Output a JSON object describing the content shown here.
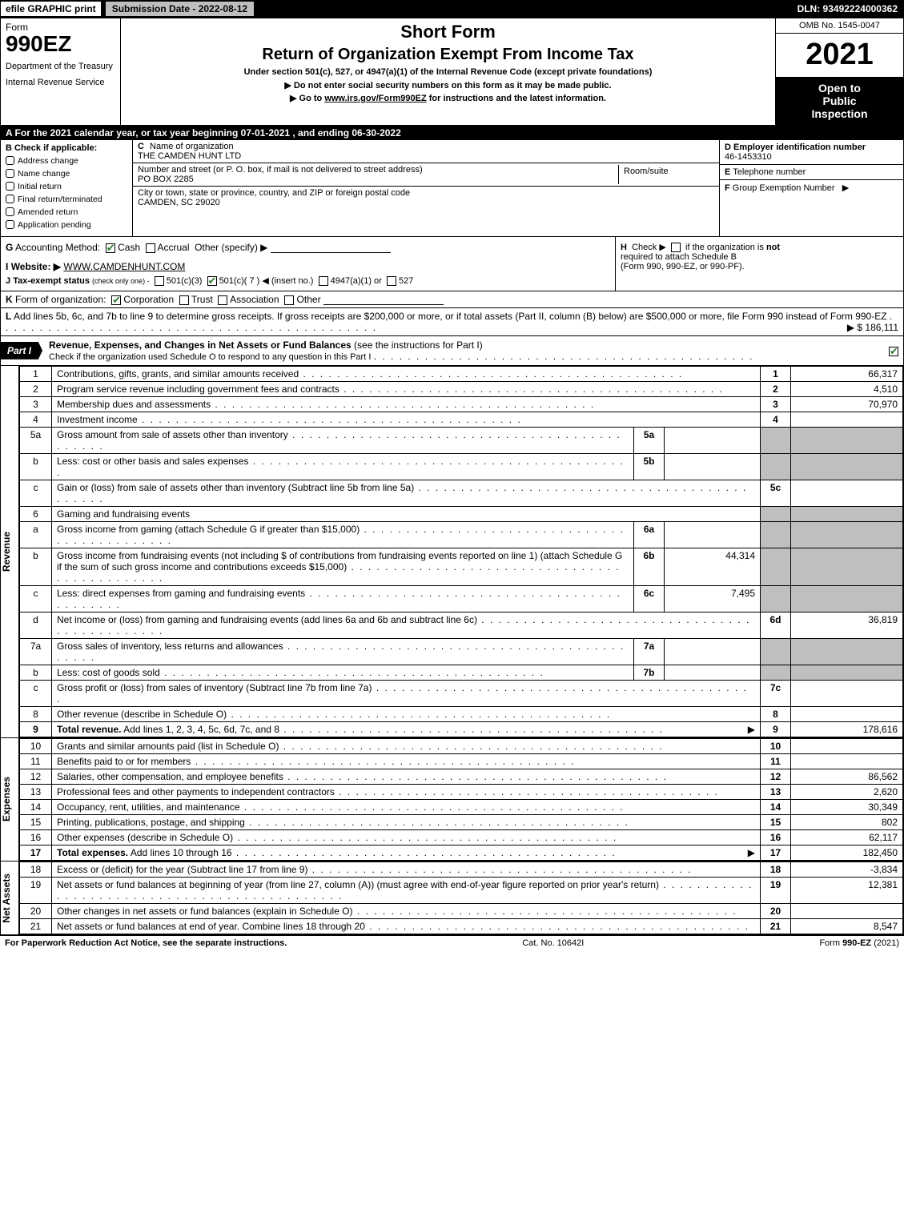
{
  "top": {
    "efile": "efile GRAPHIC print",
    "submission": "Submission Date - 2022-08-12",
    "dln": "DLN: 93492224000362"
  },
  "header": {
    "form_label": "Form",
    "form_num": "990EZ",
    "dept1": "Department of the Treasury",
    "dept2": "Internal Revenue Service",
    "short_form": "Short Form",
    "return_title": "Return of Organization Exempt From Income Tax",
    "under_section": "Under section 501(c), 527, or 4947(a)(1) of the Internal Revenue Code (except private foundations)",
    "instr1": "▶ Do not enter social security numbers on this form as it may be made public.",
    "instr2_pre": "▶ Go to ",
    "instr2_link": "www.irs.gov/Form990EZ",
    "instr2_post": " for instructions and the latest information.",
    "omb": "OMB No. 1545-0047",
    "year": "2021",
    "open1": "Open to",
    "open2": "Public",
    "open3": "Inspection"
  },
  "section_a": "A  For the 2021 calendar year, or tax year beginning 07-01-2021 , and ending 06-30-2022",
  "section_b": {
    "label": "B",
    "check_if": "Check if applicable:",
    "items": [
      "Address change",
      "Name change",
      "Initial return",
      "Final return/terminated",
      "Amended return",
      "Application pending"
    ]
  },
  "section_c": {
    "name_lab": "C",
    "name_desc": "Name of organization",
    "name_val": "THE CAMDEN HUNT LTD",
    "street_desc": "Number and street (or P. O. box, if mail is not delivered to street address)",
    "street_val": "PO BOX 2285",
    "room_lab": "Room/suite",
    "city_desc": "City or town, state or province, country, and ZIP or foreign postal code",
    "city_val": "CAMDEN, SC  29020"
  },
  "section_d": {
    "d_lab": "D",
    "ein_lab": "Employer identification number",
    "ein_val": "46-1453310",
    "e_lab": "E",
    "tel_lab": "Telephone number",
    "f_lab": "F",
    "group_lab": "Group Exemption Number",
    "group_arrow": "▶"
  },
  "section_g": {
    "label": "G",
    "text": "Accounting Method:",
    "cash": "Cash",
    "accrual": "Accrual",
    "other": "Other (specify) ▶"
  },
  "section_h": {
    "label": "H",
    "text1": "Check ▶",
    "text2": "if the organization is",
    "not": "not",
    "text3": "required to attach Schedule B",
    "text4": "(Form 990, 990-EZ, or 990-PF)."
  },
  "section_i": {
    "label": "I",
    "text": "Website: ▶",
    "val": "WWW.CAMDENHUNT.COM"
  },
  "section_j": {
    "label": "J",
    "text": "Tax-exempt status",
    "sub": "(check only one) -",
    "o1": "501(c)(3)",
    "o2": "501(c)( 7 ) ◀ (insert no.)",
    "o3": "4947(a)(1) or",
    "o4": "527"
  },
  "section_k": {
    "label": "K",
    "text": "Form of organization:",
    "o1": "Corporation",
    "o2": "Trust",
    "o3": "Association",
    "o4": "Other"
  },
  "section_l": {
    "label": "L",
    "text1": "Add lines 5b, 6c, and 7b to line 9 to determine gross receipts. If gross receipts are $200,000 or more, or if total assets (Part II, column (B) below) are $500,000 or more, file Form 990 instead of Form 990-EZ",
    "val": "▶ $ 186,111"
  },
  "part1": {
    "tag": "Part I",
    "title": "Revenue, Expenses, and Changes in Net Assets or Fund Balances",
    "sub": "(see the instructions for Part I)",
    "check_line": "Check if the organization used Schedule O to respond to any question in this Part I"
  },
  "side_labels": {
    "revenue": "Revenue",
    "expenses": "Expenses",
    "netassets": "Net Assets"
  },
  "revenue": [
    {
      "n": "1",
      "d": "Contributions, gifts, grants, and similar amounts received",
      "r": "1",
      "v": "66,317"
    },
    {
      "n": "2",
      "d": "Program service revenue including government fees and contracts",
      "r": "2",
      "v": "4,510"
    },
    {
      "n": "3",
      "d": "Membership dues and assessments",
      "r": "3",
      "v": "70,970"
    },
    {
      "n": "4",
      "d": "Investment income",
      "r": "4",
      "v": ""
    },
    {
      "n": "5a",
      "d": "Gross amount from sale of assets other than inventory",
      "mid_n": "5a",
      "mid_v": "",
      "grey": true
    },
    {
      "n": "b",
      "d": "Less: cost or other basis and sales expenses",
      "mid_n": "5b",
      "mid_v": "",
      "grey": true
    },
    {
      "n": "c",
      "d": "Gain or (loss) from sale of assets other than inventory (Subtract line 5b from line 5a)",
      "r": "5c",
      "v": ""
    },
    {
      "n": "6",
      "d": "Gaming and fundraising events",
      "grey_full": true
    },
    {
      "n": "a",
      "d": "Gross income from gaming (attach Schedule G if greater than $15,000)",
      "mid_n": "6a",
      "mid_v": "",
      "grey": true
    },
    {
      "n": "b",
      "d": "Gross income from fundraising events (not including $                      of contributions from fundraising events reported on line 1) (attach Schedule G if the sum of such gross income and contributions exceeds $15,000)",
      "mid_n": "6b",
      "mid_v": "44,314",
      "grey": true
    },
    {
      "n": "c",
      "d": "Less: direct expenses from gaming and fundraising events",
      "mid_n": "6c",
      "mid_v": "7,495",
      "grey": true
    },
    {
      "n": "d",
      "d": "Net income or (loss) from gaming and fundraising events (add lines 6a and 6b and subtract line 6c)",
      "r": "6d",
      "v": "36,819"
    },
    {
      "n": "7a",
      "d": "Gross sales of inventory, less returns and allowances",
      "mid_n": "7a",
      "mid_v": "",
      "grey": true
    },
    {
      "n": "b",
      "d": "Less: cost of goods sold",
      "mid_n": "7b",
      "mid_v": "",
      "grey": true
    },
    {
      "n": "c",
      "d": "Gross profit or (loss) from sales of inventory (Subtract line 7b from line 7a)",
      "r": "7c",
      "v": ""
    },
    {
      "n": "8",
      "d": "Other revenue (describe in Schedule O)",
      "r": "8",
      "v": ""
    },
    {
      "n": "9",
      "d": "Total revenue. Add lines 1, 2, 3, 4, 5c, 6d, 7c, and 8",
      "r": "9",
      "v": "178,616",
      "bold": true,
      "arrow": true
    }
  ],
  "expenses": [
    {
      "n": "10",
      "d": "Grants and similar amounts paid (list in Schedule O)",
      "r": "10",
      "v": ""
    },
    {
      "n": "11",
      "d": "Benefits paid to or for members",
      "r": "11",
      "v": ""
    },
    {
      "n": "12",
      "d": "Salaries, other compensation, and employee benefits",
      "r": "12",
      "v": "86,562"
    },
    {
      "n": "13",
      "d": "Professional fees and other payments to independent contractors",
      "r": "13",
      "v": "2,620"
    },
    {
      "n": "14",
      "d": "Occupancy, rent, utilities, and maintenance",
      "r": "14",
      "v": "30,349"
    },
    {
      "n": "15",
      "d": "Printing, publications, postage, and shipping",
      "r": "15",
      "v": "802"
    },
    {
      "n": "16",
      "d": "Other expenses (describe in Schedule O)",
      "r": "16",
      "v": "62,117"
    },
    {
      "n": "17",
      "d": "Total expenses. Add lines 10 through 16",
      "r": "17",
      "v": "182,450",
      "bold": true,
      "arrow": true
    }
  ],
  "netassets": [
    {
      "n": "18",
      "d": "Excess or (deficit) for the year (Subtract line 17 from line 9)",
      "r": "18",
      "v": "-3,834"
    },
    {
      "n": "19",
      "d": "Net assets or fund balances at beginning of year (from line 27, column (A)) (must agree with end-of-year figure reported on prior year's return)",
      "r": "19",
      "v": "12,381"
    },
    {
      "n": "20",
      "d": "Other changes in net assets or fund balances (explain in Schedule O)",
      "r": "20",
      "v": ""
    },
    {
      "n": "21",
      "d": "Net assets or fund balances at end of year. Combine lines 18 through 20",
      "r": "21",
      "v": "8,547"
    }
  ],
  "footer": {
    "left": "For Paperwork Reduction Act Notice, see the separate instructions.",
    "mid": "Cat. No. 10642I",
    "right_pre": "Form ",
    "right_bold": "990-EZ",
    "right_post": " (2021)"
  },
  "colors": {
    "black": "#000000",
    "white": "#ffffff",
    "grey": "#bfbfbf",
    "check_green": "#2e7d32"
  }
}
